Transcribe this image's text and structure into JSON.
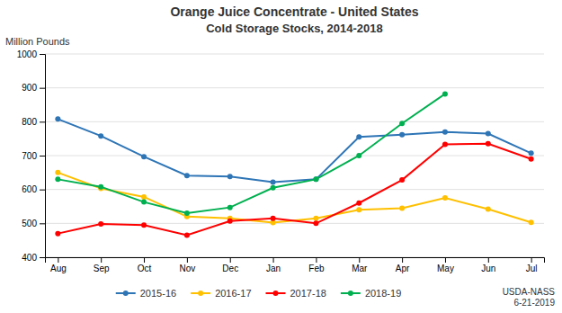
{
  "chart_data": {
    "type": "line",
    "title": "Orange Juice Concentrate - United States",
    "subtitle": "Cold Storage Stocks, 2014-2018",
    "ylabel": "Million Pounds",
    "annotation": "USDA-NASS\n6-21-2019",
    "categories": [
      "Aug",
      "Sep",
      "Oct",
      "Nov",
      "Dec",
      "Jan",
      "Feb",
      "Mar",
      "Apr",
      "May",
      "Jun",
      "Jul"
    ],
    "series": [
      {
        "name": "2015-16",
        "color": "#2E75B6",
        "values": [
          808,
          758,
          697,
          641,
          638,
          622,
          630,
          755,
          762,
          770,
          765,
          707
        ]
      },
      {
        "name": "2016-17",
        "color": "#FFC000",
        "values": [
          650,
          603,
          578,
          520,
          515,
          502,
          515,
          540,
          545,
          575,
          542,
          503
        ]
      },
      {
        "name": "2017-18",
        "color": "#FF0000",
        "values": [
          470,
          498,
          495,
          465,
          507,
          515,
          500,
          560,
          628,
          733,
          735,
          690
        ]
      },
      {
        "name": "2018-19",
        "color": "#00B050",
        "values": [
          630,
          608,
          563,
          530,
          547,
          605,
          630,
          700,
          795,
          882,
          null,
          null
        ]
      }
    ],
    "ylim": [
      400,
      1000
    ],
    "yticks": [
      400,
      500,
      600,
      700,
      800,
      900,
      1000
    ],
    "grid": true,
    "legend": "bottom",
    "marker": "circle"
  }
}
